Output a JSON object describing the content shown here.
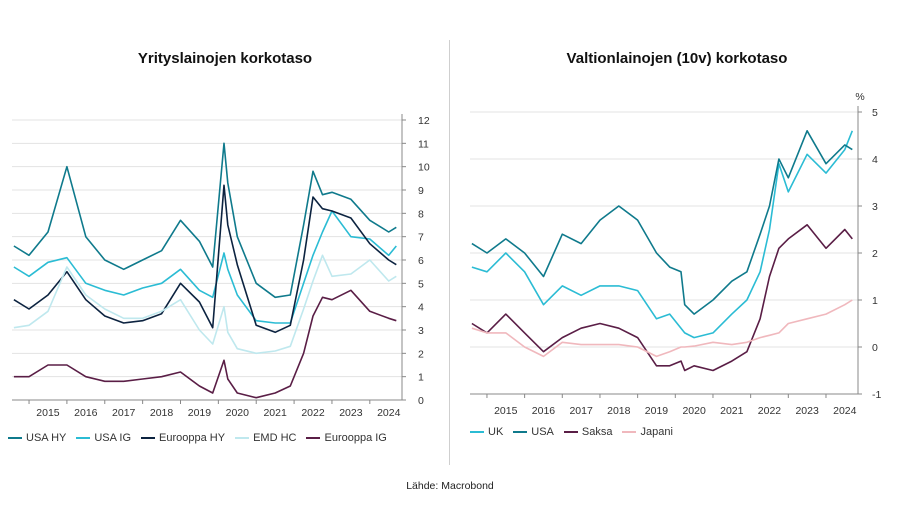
{
  "source": "Lähde: Macrobond",
  "chart_data": [
    {
      "type": "line",
      "title": "Yrityslainojen korkotaso",
      "ylabel": "",
      "ylim": [
        0,
        12
      ],
      "yticks": [
        "0",
        "1",
        "2",
        "3",
        "4",
        "5",
        "6",
        "7",
        "8",
        "9",
        "10",
        "11",
        "12"
      ],
      "xticks": [
        "2015",
        "2016",
        "2017",
        "2018",
        "2019",
        "2020",
        "2021",
        "2022",
        "2023",
        "2024"
      ],
      "x": [
        2014.6,
        2015.0,
        2015.5,
        2016.0,
        2016.5,
        2017.0,
        2017.5,
        2018.0,
        2018.5,
        2019.0,
        2019.5,
        2019.85,
        2020.15,
        2020.25,
        2020.5,
        2021.0,
        2021.5,
        2021.9,
        2022.25,
        2022.5,
        2022.75,
        2023.0,
        2023.5,
        2024.0,
        2024.5,
        2024.7
      ],
      "series": [
        {
          "name": "USA HY",
          "color": "#0f7a8c",
          "values": [
            6.6,
            6.2,
            7.2,
            10.0,
            7.0,
            6.0,
            5.6,
            6.0,
            6.4,
            7.7,
            6.8,
            5.7,
            11.0,
            9.3,
            7.0,
            5.0,
            4.4,
            4.5,
            7.5,
            9.8,
            8.8,
            8.9,
            8.6,
            7.7,
            7.2,
            7.4
          ]
        },
        {
          "name": "USA IG",
          "color": "#2bbcd4",
          "values": [
            5.7,
            5.3,
            5.9,
            6.1,
            5.0,
            4.7,
            4.5,
            4.8,
            5.0,
            5.6,
            4.7,
            4.4,
            6.3,
            5.6,
            4.5,
            3.4,
            3.3,
            3.3,
            5.0,
            6.2,
            7.2,
            8.1,
            7.0,
            6.9,
            6.2,
            6.6
          ]
        },
        {
          "name": "Eurooppa HY",
          "color": "#0c2340",
          "values": [
            4.3,
            3.9,
            4.5,
            5.5,
            4.3,
            3.6,
            3.3,
            3.4,
            3.7,
            5.0,
            4.2,
            3.1,
            9.2,
            7.5,
            5.8,
            3.2,
            2.9,
            3.2,
            6.0,
            8.7,
            8.2,
            8.1,
            7.8,
            6.7,
            6.0,
            5.8
          ]
        },
        {
          "name": "EMD HC",
          "color": "#bfe8ee",
          "values": [
            3.1,
            3.2,
            3.8,
            5.7,
            4.5,
            3.9,
            3.5,
            3.5,
            3.8,
            4.3,
            3.0,
            2.4,
            4.0,
            2.9,
            2.2,
            2.0,
            2.1,
            2.3,
            3.9,
            5.1,
            6.2,
            5.3,
            5.4,
            6.0,
            5.1,
            5.3
          ]
        },
        {
          "name": "Eurooppa IG",
          "color": "#5a1e46",
          "values": [
            1.0,
            1.0,
            1.5,
            1.5,
            1.0,
            0.8,
            0.8,
            0.9,
            1.0,
            1.2,
            0.6,
            0.3,
            1.7,
            0.9,
            0.3,
            0.1,
            0.3,
            0.6,
            2.0,
            3.6,
            4.4,
            4.3,
            4.7,
            3.8,
            3.5,
            3.4
          ]
        }
      ]
    },
    {
      "type": "line",
      "title": "Valtionlainojen (10v) korkotaso",
      "ylabel": "%",
      "ylim": [
        -1,
        5
      ],
      "yticks": [
        "-1",
        "0",
        "1",
        "2",
        "3",
        "4",
        "5"
      ],
      "xticks": [
        "2015",
        "2016",
        "2017",
        "2018",
        "2019",
        "2020",
        "2021",
        "2022",
        "2023",
        "2024"
      ],
      "x": [
        2014.6,
        2015.0,
        2015.5,
        2016.0,
        2016.5,
        2017.0,
        2017.5,
        2018.0,
        2018.5,
        2019.0,
        2019.5,
        2019.85,
        2020.15,
        2020.25,
        2020.5,
        2021.0,
        2021.5,
        2021.9,
        2022.25,
        2022.5,
        2022.75,
        2023.0,
        2023.5,
        2024.0,
        2024.5,
        2024.7
      ],
      "series": [
        {
          "name": "UK",
          "color": "#2bbcd4",
          "values": [
            1.7,
            1.6,
            2.0,
            1.6,
            0.9,
            1.3,
            1.1,
            1.3,
            1.3,
            1.2,
            0.6,
            0.7,
            0.4,
            0.3,
            0.2,
            0.3,
            0.7,
            1.0,
            1.6,
            2.5,
            3.9,
            3.3,
            4.1,
            3.7,
            4.2,
            4.6
          ]
        },
        {
          "name": "USA",
          "color": "#0f7a8c",
          "values": [
            2.2,
            2.0,
            2.3,
            2.0,
            1.5,
            2.4,
            2.2,
            2.7,
            3.0,
            2.7,
            2.0,
            1.7,
            1.6,
            0.9,
            0.7,
            1.0,
            1.4,
            1.6,
            2.4,
            3.0,
            4.0,
            3.6,
            4.6,
            3.9,
            4.3,
            4.2
          ]
        },
        {
          "name": "Saksa",
          "color": "#5a1e46",
          "values": [
            0.5,
            0.3,
            0.7,
            0.3,
            -0.1,
            0.2,
            0.4,
            0.5,
            0.4,
            0.2,
            -0.4,
            -0.4,
            -0.3,
            -0.5,
            -0.4,
            -0.5,
            -0.3,
            -0.1,
            0.6,
            1.5,
            2.1,
            2.3,
            2.6,
            2.1,
            2.5,
            2.3
          ]
        },
        {
          "name": "Japani",
          "color": "#f0b8bd",
          "values": [
            0.4,
            0.3,
            0.3,
            0.0,
            -0.2,
            0.1,
            0.05,
            0.05,
            0.05,
            0.0,
            -0.2,
            -0.1,
            0.0,
            0.0,
            0.02,
            0.1,
            0.05,
            0.1,
            0.2,
            0.25,
            0.3,
            0.5,
            0.6,
            0.7,
            0.9,
            1.0
          ]
        }
      ]
    }
  ]
}
